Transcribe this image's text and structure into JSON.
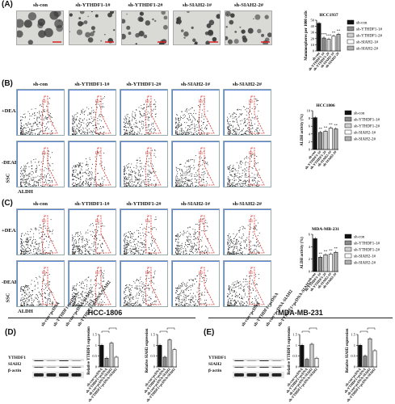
{
  "panels": {
    "A": "(A)",
    "B": "(B)",
    "C": "(C)",
    "D": "(D)",
    "E": "(E)"
  },
  "groups": [
    "sh-con",
    "sh-YTHDF1-1#",
    "sh-YTHDF1-2#",
    "sh-SIAH2-1#",
    "sh-SIAH2-2#"
  ],
  "flow_rows": [
    "+DEAB",
    "-DEAB"
  ],
  "flow_axes": {
    "y": "SSC",
    "x": "ALDH"
  },
  "gate_labels": {
    "B": {
      "+DEAB": [
        "P1",
        "P1",
        "P1",
        "P1",
        "P1"
      ],
      "-DEAB": [
        "P1",
        "P1",
        "P1",
        "P1",
        "P1"
      ]
    },
    "C": {
      "+DEAB": [
        "P1",
        "P1",
        "P1",
        "P1",
        "P1"
      ],
      "-DEAB": [
        "P1",
        "P1",
        "P1",
        "P1",
        "P1"
      ]
    }
  },
  "sections": {
    "left": "HCC-1806",
    "right": "MDA-MB-231"
  },
  "western": {
    "D": {
      "lanes": [
        "sh-con+pcDNA",
        "sh-YTHDF1+pcDNA",
        "sh-con+pcDNA-SIAH2",
        "sh-YTHDF1+pcDNA-SIAH2"
      ],
      "bands": [
        "YTHDF1",
        "SIAH2",
        "β-actin"
      ]
    },
    "E": {
      "lanes": [
        "sh-con+pcDNA",
        "sh-YTHDF1+pcDNA",
        "sh-con+pcDNA-SIAH2",
        "sh-YTHDF1+pcDNA-SIAH2"
      ],
      "bands": [
        "YTHDF1",
        "SIAH2",
        "β-actin"
      ]
    }
  },
  "colors": {
    "gate": "#d9302c",
    "frame": "#3366cc"
  },
  "chart_data": [
    {
      "id": "A",
      "type": "bar",
      "title": "HCC1937",
      "ylabel": "Mammospheres per 1000 cells",
      "categories": [
        "sh-con",
        "sh-YTHDF1-1#",
        "sh-YTHDF1-2#",
        "sh-SIAH2-1#",
        "sh-SIAH2-2#"
      ],
      "values": [
        45,
        21,
        19,
        24,
        27
      ],
      "ylim": [
        0,
        50
      ],
      "yticks": [
        0,
        10,
        20,
        30,
        40,
        50
      ],
      "significance": [
        "",
        "***",
        "***",
        "**",
        "**"
      ],
      "legend": "right"
    },
    {
      "id": "B",
      "type": "bar",
      "title": "HCC1806",
      "ylabel": "ALDH activity (%)",
      "categories": [
        "sh-con",
        "sh-YTHDF1-1#",
        "sh-YTHDF1-2#",
        "sh-SIAH2-1#",
        "sh-SIAH2-2#"
      ],
      "values": [
        8.2,
        4.4,
        4.7,
        5.5,
        5.3
      ],
      "ylim": [
        0,
        10
      ],
      "yticks": [
        0,
        2,
        4,
        6,
        8,
        10
      ],
      "significance": [
        "",
        "**",
        "**",
        "**",
        "**"
      ],
      "legend": "right"
    },
    {
      "id": "C",
      "type": "bar",
      "title": "MDA-MB-231",
      "ylabel": "ALDH activity (%)",
      "categories": [
        "sh-con",
        "sh-YTHDF1-1#",
        "sh-YTHDF1-2#",
        "sh-SIAH2-1#",
        "sh-SIAH2-2#"
      ],
      "values": [
        5.3,
        2.3,
        2.7,
        2.8,
        3.1
      ],
      "ylim": [
        0,
        6
      ],
      "yticks": [
        0,
        2,
        4,
        6
      ],
      "significance": [
        "",
        "**",
        "**",
        "**",
        "**"
      ],
      "legend": "right"
    },
    {
      "id": "D1",
      "type": "bar",
      "ylabel": "Relative YTHDF1 expression",
      "categories": [
        "sh-con+pcDNA",
        "sh-YTHDF1+pcDNA",
        "sh-con+pcDNA-SIAH2",
        "sh-YTHDF1+pcDNA-SIAH2"
      ],
      "values": [
        1.0,
        0.4,
        1.1,
        0.45
      ],
      "ylim": [
        0,
        1.5
      ],
      "yticks": [
        0.0,
        0.5,
        1.0,
        1.5
      ]
    },
    {
      "id": "D2",
      "type": "bar",
      "ylabel": "Relative SIAH2 expression",
      "categories": [
        "sh-con+pcDNA",
        "sh-YTHDF1+pcDNA",
        "sh-con+pcDNA-SIAH2",
        "sh-YTHDF1+pcDNA-SIAH2"
      ],
      "values": [
        1.0,
        0.45,
        1.25,
        0.8
      ],
      "ylim": [
        0,
        1.5
      ],
      "yticks": [
        0.0,
        0.5,
        1.0,
        1.5
      ]
    },
    {
      "id": "E1",
      "type": "bar",
      "ylabel": "Relative YTHDF1 expression",
      "categories": [
        "sh-con+pcDNA",
        "sh-YTHDF1+pcDNA",
        "sh-con+pcDNA-SIAH2",
        "sh-YTHDF1+pcDNA-SIAH2"
      ],
      "values": [
        1.0,
        0.35,
        1.05,
        0.4
      ],
      "ylim": [
        0,
        1.5
      ],
      "yticks": [
        0.0,
        0.5,
        1.0,
        1.5
      ]
    },
    {
      "id": "E2",
      "type": "bar",
      "ylabel": "Relative SIAH2 expression",
      "categories": [
        "sh-con+pcDNA",
        "sh-YTHDF1+pcDNA",
        "sh-con+pcDNA-SIAH2",
        "sh-YTHDF1+pcDNA-SIAH2"
      ],
      "values": [
        1.0,
        0.5,
        1.3,
        0.75
      ],
      "ylim": [
        0,
        1.5
      ],
      "yticks": [
        0.0,
        0.5,
        1.0,
        1.5
      ]
    }
  ]
}
